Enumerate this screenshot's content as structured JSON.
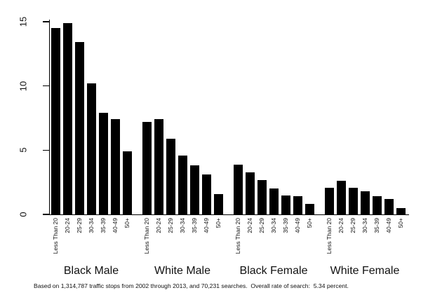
{
  "chart_data": {
    "type": "bar",
    "title": "",
    "xlabel": "",
    "ylabel": "",
    "ylim": [
      0,
      15
    ],
    "yticks": [
      "0",
      "5",
      "10",
      "15"
    ],
    "grid": false,
    "legend_position": "none",
    "bar_color": "#000000",
    "categories": [
      "Less Than 20",
      "20-24",
      "25-29",
      "30-34",
      "35-39",
      "40-49",
      "50+"
    ],
    "series": [
      {
        "name": "Black Male",
        "values": [
          14.5,
          14.9,
          13.4,
          10.2,
          7.9,
          7.4,
          4.9
        ]
      },
      {
        "name": "White Male",
        "values": [
          7.2,
          7.4,
          5.9,
          4.6,
          3.8,
          3.1,
          1.6
        ]
      },
      {
        "name": "Black Female",
        "values": [
          3.9,
          3.3,
          2.7,
          2.0,
          1.5,
          1.4,
          0.8
        ]
      },
      {
        "name": "White Female",
        "values": [
          2.1,
          2.6,
          2.1,
          1.8,
          1.4,
          1.2,
          0.5
        ]
      }
    ],
    "footnote": "Based on 1,314,787 traffic stops from 2002 through 2013, and 70,231 searches.  Overall rate of search:  5.34 percent."
  }
}
